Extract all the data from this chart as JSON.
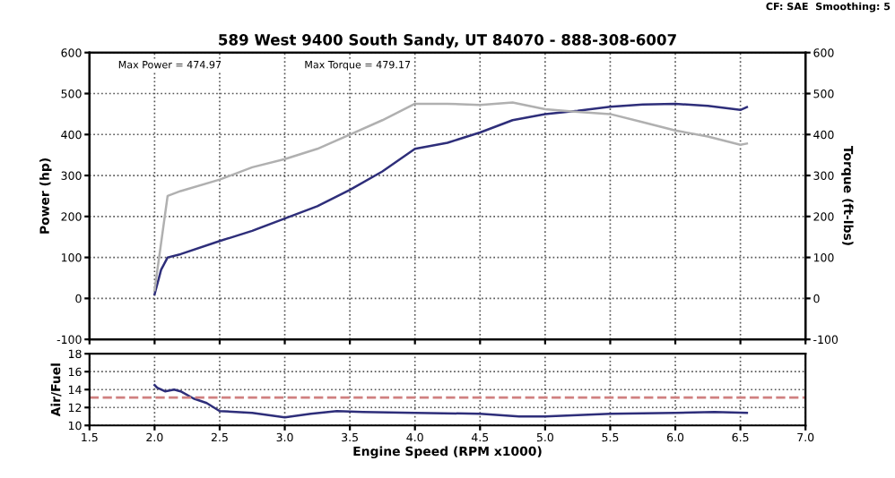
{
  "chart_data": [
    {
      "type": "line",
      "title": "589 West 9400 South Sandy, UT 84070 - 888-308-6007",
      "annotations": [
        "CF: SAE  Smoothing: 5",
        "Max Power = 474.97",
        "Max Torque = 479.17"
      ],
      "ylabel": "Power (hp)",
      "y2label": "Torque (ft-lbs)",
      "xlim": [
        1.5,
        7.0
      ],
      "xticks": [
        1.5,
        2,
        2.5,
        3,
        3.5,
        4,
        4.5,
        5,
        5.5,
        6,
        6.5,
        7
      ],
      "ylim": [
        -100,
        600
      ],
      "yticks": [
        -100,
        0,
        100,
        200,
        300,
        400,
        500,
        600
      ],
      "y2lim": [
        -100,
        600
      ],
      "y2ticks": [
        -100,
        0,
        100,
        200,
        300,
        400,
        500,
        600
      ],
      "grid": true,
      "tick_labels": "y",
      "line_style": "solid",
      "marker": "none",
      "series": [
        {
          "color": "#2e2e7a",
          "axis": "y",
          "x": [
            2.0,
            2.05,
            2.1,
            2.2,
            2.5,
            2.75,
            3.0,
            3.25,
            3.5,
            3.75,
            4.0,
            4.25,
            4.5,
            4.75,
            5.0,
            5.25,
            5.5,
            5.75,
            6.0,
            6.25,
            6.5,
            6.55
          ],
          "values": [
            10,
            70,
            100,
            108,
            140,
            165,
            195,
            225,
            265,
            310,
            365,
            380,
            405,
            435,
            450,
            458,
            468,
            473,
            475,
            470,
            460,
            467
          ]
        },
        {
          "color": "#b0b0b0",
          "axis": "y2",
          "x": [
            2.0,
            2.1,
            2.2,
            2.5,
            2.75,
            3.0,
            3.25,
            3.5,
            3.75,
            4.0,
            4.25,
            4.5,
            4.75,
            5.0,
            5.25,
            5.5,
            5.75,
            6.0,
            6.25,
            6.5,
            6.55
          ],
          "values": [
            20,
            250,
            262,
            290,
            320,
            340,
            365,
            400,
            435,
            475,
            475,
            472,
            478,
            462,
            455,
            450,
            430,
            410,
            395,
            375,
            378
          ]
        }
      ]
    },
    {
      "type": "line",
      "ylabel": "Air/Fuel",
      "xlabel": "Engine Speed (RPM x1000)",
      "xlim": [
        1.5,
        7.0
      ],
      "xticks": [
        {
          "value": 1.5,
          "label": "1.5"
        },
        {
          "value": 2,
          "label": "2.0"
        },
        {
          "value": 2.5,
          "label": "2.5"
        },
        {
          "value": 3,
          "label": "3.0"
        },
        {
          "value": 3.5,
          "label": "3.5"
        },
        {
          "value": 4,
          "label": "4.0"
        },
        {
          "value": 4.5,
          "label": "4.5"
        },
        {
          "value": 5,
          "label": "5.0"
        },
        {
          "value": 5.5,
          "label": "5.5"
        },
        {
          "value": 6,
          "label": "6.0"
        },
        {
          "value": 6.5,
          "label": "6.5"
        },
        {
          "value": 7,
          "label": "7.0"
        }
      ],
      "ylim": [
        10,
        18
      ],
      "yticks": [
        10,
        12,
        14,
        16,
        18
      ],
      "grid": true,
      "line_style": "solid",
      "marker": "none",
      "ref_lines": [
        {
          "axis": "y",
          "value": 13.1,
          "color": "#d08080",
          "line_style": "dashed"
        }
      ],
      "series": [
        {
          "color": "#2e2e7a",
          "x": [
            2.0,
            2.02,
            2.08,
            2.15,
            2.2,
            2.3,
            2.4,
            2.5,
            2.75,
            3.0,
            3.2,
            3.4,
            3.6,
            4.0,
            4.5,
            4.8,
            5.0,
            5.5,
            6.0,
            6.3,
            6.55
          ],
          "values": [
            14.5,
            14.2,
            13.8,
            14.0,
            13.8,
            13.0,
            12.5,
            11.6,
            11.4,
            10.9,
            11.3,
            11.6,
            11.5,
            11.4,
            11.3,
            11.0,
            11.0,
            11.3,
            11.4,
            11.5,
            11.4
          ]
        }
      ]
    }
  ]
}
